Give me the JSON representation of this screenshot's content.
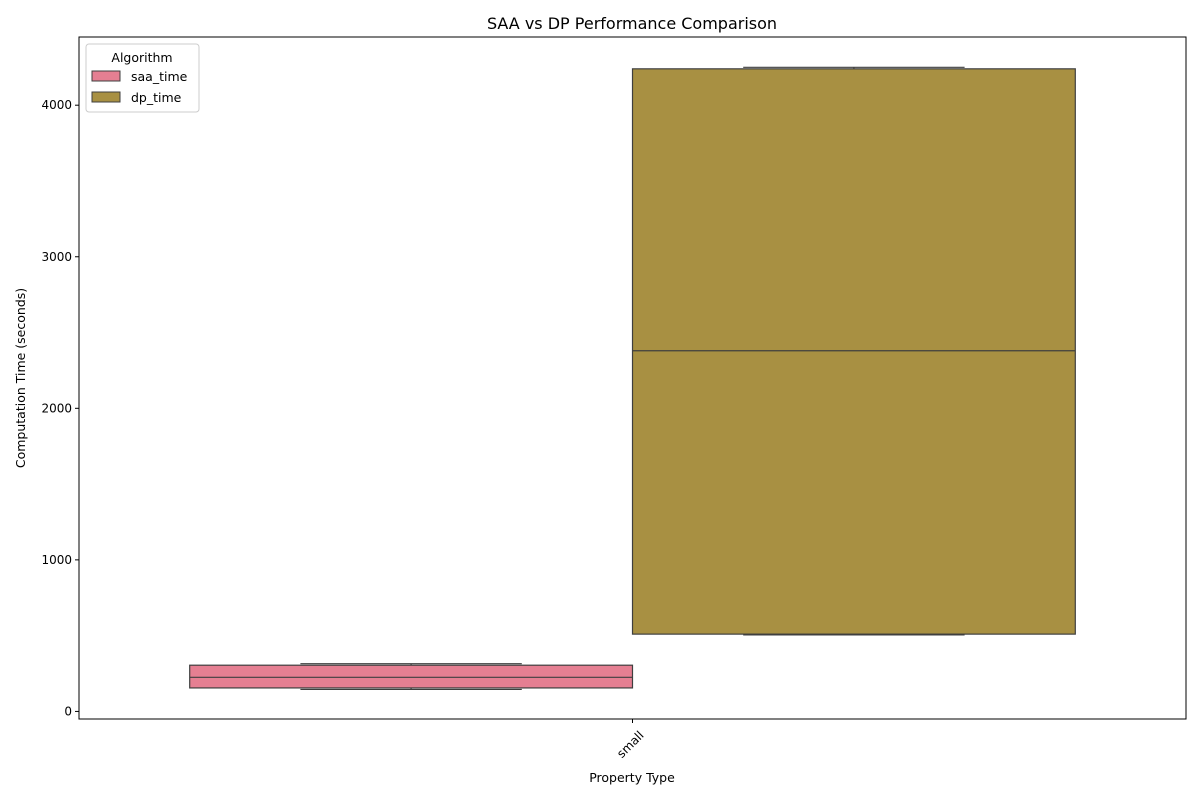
{
  "chart_data": {
    "type": "box",
    "title": "SAA vs DP Performance Comparison",
    "xlabel": "Property Type",
    "ylabel": "Computation Time (seconds)",
    "categories": [
      "small"
    ],
    "ylim": [
      -50,
      4450
    ],
    "yticks": [
      0,
      1000,
      2000,
      3000,
      4000
    ],
    "grid": false,
    "legend": {
      "title": "Algorithm",
      "placement": "top-left"
    },
    "series": [
      {
        "name": "saa_time",
        "color": "#e57f92",
        "boxes": [
          {
            "category": "small",
            "whisker_low": 145,
            "q1": 155,
            "median": 225,
            "q3": 305,
            "whisker_high": 315
          }
        ]
      },
      {
        "name": "dp_time",
        "color": "#a89042",
        "boxes": [
          {
            "category": "small",
            "whisker_low": 505,
            "q1": 510,
            "median": 2380,
            "q3": 4240,
            "whisker_high": 4250
          }
        ]
      }
    ]
  }
}
